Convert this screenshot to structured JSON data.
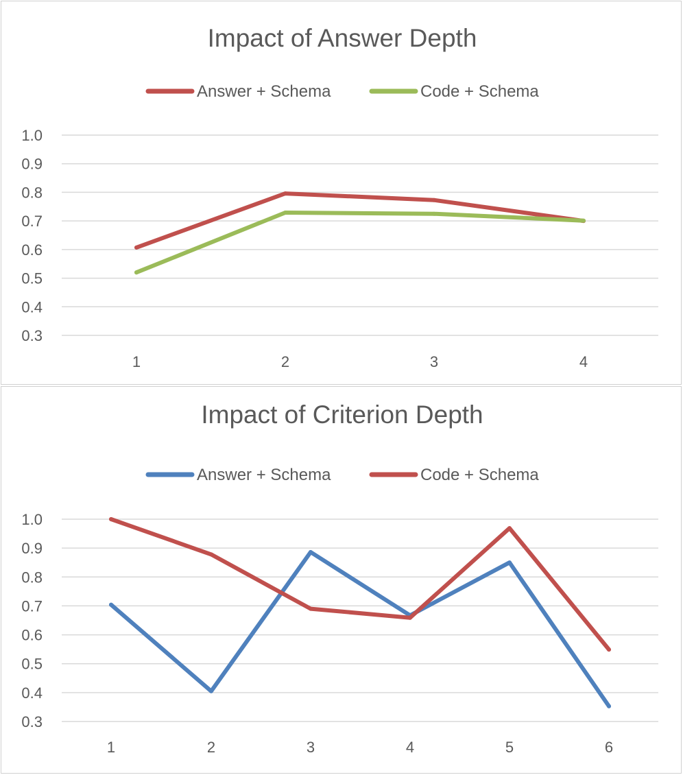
{
  "chart_data": [
    {
      "type": "line",
      "title": "Impact of Answer Depth",
      "categories": [
        "1",
        "2",
        "3",
        "4"
      ],
      "ylim": [
        0.3,
        1.0
      ],
      "yticks": [
        "0.3",
        "0.4",
        "0.5",
        "0.6",
        "0.7",
        "0.8",
        "0.9",
        "1.0"
      ],
      "grid": true,
      "legend_position": "top",
      "series": [
        {
          "name": "Answer + Schema",
          "color": "#c0504d",
          "values": [
            0.607,
            0.796,
            0.773,
            0.7
          ]
        },
        {
          "name": "Code + Schema",
          "color": "#9bbb59",
          "values": [
            0.52,
            0.729,
            0.725,
            0.701
          ]
        }
      ]
    },
    {
      "type": "line",
      "title": "Impact of Criterion Depth",
      "categories": [
        "1",
        "2",
        "3",
        "4",
        "5",
        "6"
      ],
      "ylim": [
        0.3,
        1.0
      ],
      "yticks": [
        "0.3",
        "0.4",
        "0.5",
        "0.6",
        "0.7",
        "0.8",
        "0.9",
        "1.0"
      ],
      "grid": true,
      "legend_position": "top",
      "series": [
        {
          "name": "Answer + Schema",
          "color": "#4f81bd",
          "values": [
            0.704,
            0.405,
            0.886,
            0.667,
            0.85,
            0.353
          ]
        },
        {
          "name": "Code + Schema",
          "color": "#c0504d",
          "values": [
            1.0,
            0.878,
            0.69,
            0.659,
            0.969,
            0.549
          ]
        }
      ]
    }
  ]
}
